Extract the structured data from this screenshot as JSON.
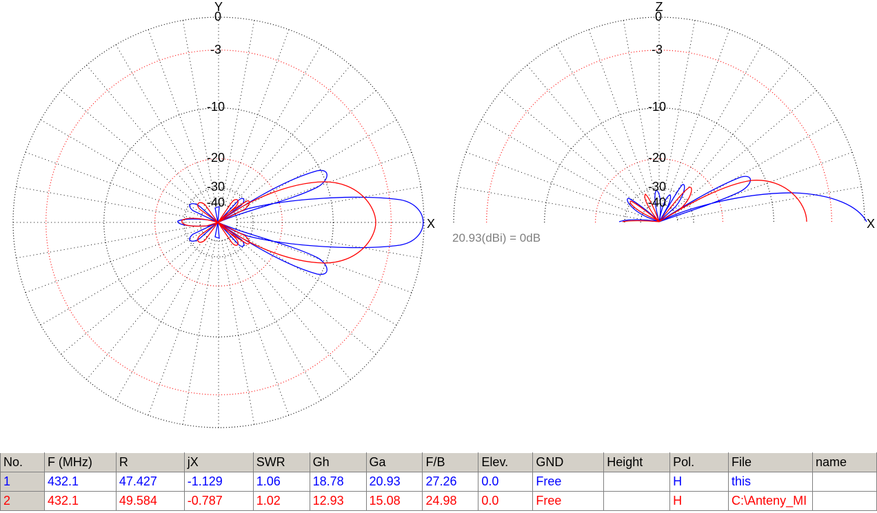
{
  "colors": {
    "series1": "#0000ff",
    "series2": "#ff0000",
    "grid_main": "#000000",
    "grid_ref": "#ff0000",
    "note": "#808080",
    "header_bg": "#d4d0c8"
  },
  "azimuth_plot": {
    "y_axis_label": "Y",
    "x_axis_label": "X",
    "ring_labels": [
      "0",
      "-3",
      "-10",
      "-20",
      "-30",
      "-40"
    ]
  },
  "elevation_plot": {
    "z_axis_label": "Z",
    "x_axis_label": "X",
    "ring_labels": [
      "0",
      "-3",
      "-10",
      "-20",
      "-30",
      "-40"
    ]
  },
  "gain_reference": "20.93(dBi) = 0dB",
  "table": {
    "columns": [
      "No.",
      "F (MHz)",
      "R",
      "jX",
      "SWR",
      "Gh",
      "Ga",
      "F/B",
      "Elev.",
      "GND",
      "Height",
      "Pol.",
      "File",
      "name"
    ],
    "rows": [
      [
        "1",
        "432.1",
        "47.427",
        "-1.129",
        "1.06",
        "18.78",
        "20.93",
        "27.26",
        "0.0",
        "Free",
        "",
        "H",
        "this",
        ""
      ],
      [
        "2",
        "432.1",
        "49.584",
        "-0.787",
        "1.02",
        "12.93",
        "15.08",
        "24.98",
        "0.0",
        "Free",
        "",
        "H",
        "C:\\Anteny_MI",
        ""
      ]
    ]
  }
}
